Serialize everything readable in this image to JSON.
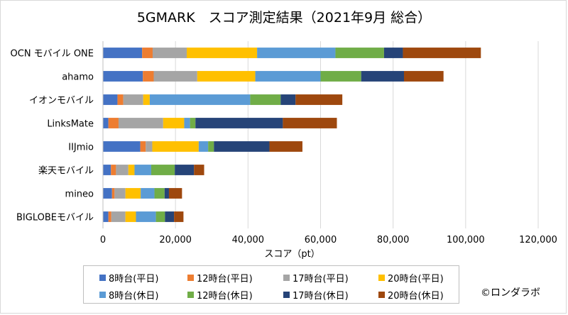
{
  "title": "5GMARK　スコア測定結果（2021年9月 総合）",
  "credit": "©ロンダラボ",
  "chart_data": {
    "type": "bar",
    "orientation": "horizontal",
    "stacked": true,
    "title": "5GMARK　スコア測定結果（2021年9月 総合）",
    "xlabel": "スコア（pt）",
    "ylabel": "",
    "xlim": [
      0,
      120000
    ],
    "xticks": [
      0,
      20000,
      40000,
      60000,
      80000,
      100000,
      120000
    ],
    "xtick_labels": [
      "0",
      "20,000",
      "40,000",
      "60,000",
      "80,000",
      "100,000",
      "120,000"
    ],
    "grid": "vertical",
    "legend_position": "bottom",
    "categories": [
      "OCN モバイル ONE",
      "ahamo",
      "イオンモバイル",
      "LinksMate",
      "IIJmio",
      "楽天モバイル",
      "mineo",
      "BIGLOBEモバイル"
    ],
    "series": [
      {
        "name": "8時台(平日)",
        "color": "#4472c4",
        "values": [
          10800,
          11000,
          4000,
          1500,
          10300,
          2200,
          2500,
          1500
        ]
      },
      {
        "name": "12時台(平日)",
        "color": "#ed7d31",
        "values": [
          2900,
          3000,
          1600,
          2800,
          1500,
          1400,
          700,
          800
        ]
      },
      {
        "name": "17時台(平日)",
        "color": "#a5a5a5",
        "values": [
          9400,
          12000,
          5500,
          12300,
          1800,
          3400,
          3000,
          3900
        ]
      },
      {
        "name": "20時台(平日)",
        "color": "#ffc000",
        "values": [
          19400,
          16000,
          1800,
          5800,
          12800,
          1700,
          4200,
          2900
        ]
      },
      {
        "name": "8時台(休日)",
        "color": "#5b9bd5",
        "values": [
          21600,
          18000,
          27700,
          1600,
          2600,
          4600,
          3800,
          5500
        ]
      },
      {
        "name": "12時台(休日)",
        "color": "#70ad47",
        "values": [
          13400,
          11200,
          8400,
          1500,
          1600,
          6500,
          2800,
          2500
        ]
      },
      {
        "name": "17時台(休日)",
        "color": "#264478",
        "values": [
          5200,
          11800,
          4100,
          24100,
          15300,
          5300,
          1200,
          2500
        ]
      },
      {
        "name": "20時台(休日)",
        "color": "#9e480e",
        "values": [
          21500,
          10900,
          12900,
          14900,
          9100,
          2800,
          3600,
          2600
        ]
      }
    ]
  }
}
